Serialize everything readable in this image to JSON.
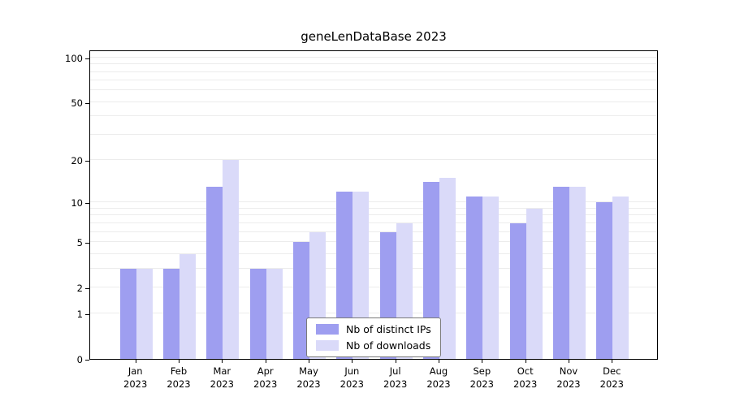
{
  "title": "geneLenDataBase 2023",
  "chart_data": {
    "type": "bar",
    "title": "geneLenDataBase 2023",
    "categories": [
      {
        "month": "Jan",
        "year": "2023"
      },
      {
        "month": "Feb",
        "year": "2023"
      },
      {
        "month": "Mar",
        "year": "2023"
      },
      {
        "month": "Apr",
        "year": "2023"
      },
      {
        "month": "May",
        "year": "2023"
      },
      {
        "month": "Jun",
        "year": "2023"
      },
      {
        "month": "Jul",
        "year": "2023"
      },
      {
        "month": "Aug",
        "year": "2023"
      },
      {
        "month": "Sep",
        "year": "2023"
      },
      {
        "month": "Oct",
        "year": "2023"
      },
      {
        "month": "Nov",
        "year": "2023"
      },
      {
        "month": "Dec",
        "year": "2023"
      }
    ],
    "series": [
      {
        "name": "Nb of distinct IPs",
        "color": "#9e9ef0",
        "values": [
          3,
          3,
          13,
          3,
          5,
          12,
          6,
          14,
          11,
          7,
          13,
          10
        ]
      },
      {
        "name": "Nb of downloads",
        "color": "#dadaf9",
        "values": [
          3,
          4,
          20,
          3,
          6,
          12,
          7,
          15,
          11,
          9,
          13,
          11
        ]
      }
    ],
    "y_scale": "log10(1+v)",
    "ylim": [
      0,
      113
    ],
    "y_tick_values": [
      0,
      1,
      2,
      5,
      10,
      20,
      50,
      100
    ],
    "y_tick_labels": [
      "0",
      "1",
      "2",
      "5",
      "10",
      "20",
      "50",
      "100"
    ],
    "minor_gridlines": [
      1,
      2,
      3,
      4,
      5,
      6,
      7,
      8,
      9,
      10,
      20,
      30,
      40,
      50,
      60,
      70,
      80,
      90,
      100
    ],
    "grid_on": true,
    "grid_color": "#ececec",
    "axis_color": "#000000",
    "legend_position": "lower center"
  },
  "legend": {
    "entries": [
      "Nb of distinct IPs",
      "Nb of downloads"
    ]
  }
}
